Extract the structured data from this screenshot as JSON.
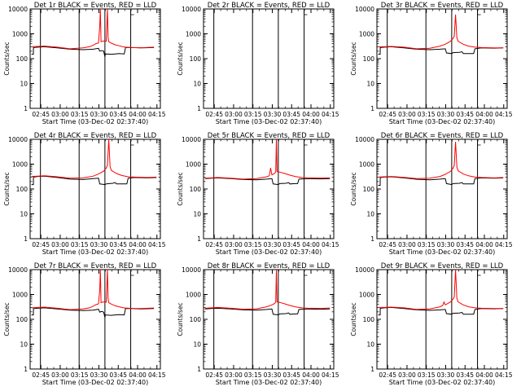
{
  "figure": {
    "x_tick_labels": [
      "02:45",
      "03:00",
      "03:15",
      "03:30",
      "03:45",
      "04:00",
      "04:15"
    ],
    "y_tick_labels": [
      "1",
      "10",
      "100",
      "1000",
      "10000"
    ],
    "ylabel": "Counts/sec",
    "xlabel": "Start Time (03-Dec-02 02:37:40)",
    "colors": {
      "events": "#000000",
      "lld": "#ff0000",
      "frame": "#000000",
      "background": "#ffffff"
    }
  },
  "chart_data": [
    {
      "type": "line",
      "title": "Det 1r BLACK = Events, RED = LLD",
      "xlabel": "Start Time (03-Dec-02 02:37:40)",
      "ylabel": "Counts/sec",
      "yscale": "log",
      "ylim": [
        1,
        10000
      ],
      "xlim_minutes": [
        -1,
        100
      ],
      "vlines_minutes": [
        7,
        37,
        57,
        77
      ],
      "series": [
        {
          "name": "Events",
          "color": "#000000",
          "x": [
            0,
            1.5,
            1.6,
            5,
            10,
            20,
            30,
            40,
            48,
            52,
            53,
            54,
            55,
            56,
            57,
            57.3,
            62,
            65,
            68,
            72,
            73,
            78,
            85,
            95
          ],
          "y": [
            150,
            150,
            280,
            290,
            300,
            270,
            240,
            230,
            240,
            260,
            200,
            210,
            210,
            200,
            120,
            155,
            150,
            155,
            160,
            155,
            280,
            280,
            270,
            280
          ]
        },
        {
          "name": "LLD",
          "color": "#ff0000",
          "x": [
            0,
            5,
            10,
            20,
            30,
            40,
            45,
            48,
            50,
            52,
            53,
            53.5,
            54,
            55,
            56,
            57,
            58,
            59,
            59.5,
            60,
            61,
            62,
            65,
            68,
            71,
            73,
            78,
            85,
            95
          ],
          "y": [
            300,
            310,
            320,
            290,
            250,
            270,
            300,
            350,
            400,
            430,
            2000,
            20000,
            480,
            500,
            510,
            520,
            500,
            20000,
            700,
            480,
            450,
            420,
            360,
            330,
            300,
            290,
            280,
            275,
            290
          ]
        }
      ]
    },
    {
      "type": "line",
      "title": "Det 2r BLACK = Events, RED = LLD",
      "xlabel": "Start Time (03-Dec-02 02:37:40)",
      "ylabel": "Counts/sec",
      "yscale": "log",
      "ylim": [
        1,
        10000
      ],
      "xlim_minutes": [
        -1,
        100
      ],
      "vlines_minutes": [
        7,
        37,
        57,
        77
      ],
      "series": []
    },
    {
      "type": "line",
      "title": "Det 3r BLACK = Events, RED = LLD",
      "xlabel": "Start Time (03-Dec-02 02:37:40)",
      "ylabel": "Counts/sec",
      "yscale": "log",
      "ylim": [
        1,
        10000
      ],
      "xlim_minutes": [
        -1,
        100
      ],
      "vlines_minutes": [
        7,
        37,
        57,
        77
      ],
      "series": [
        {
          "name": "Events",
          "color": "#000000",
          "x": [
            0,
            1.5,
            1.6,
            5,
            10,
            20,
            30,
            40,
            48,
            52,
            53,
            57,
            58,
            63,
            65,
            66,
            70,
            74,
            75,
            80,
            90,
            97
          ],
          "y": [
            150,
            150,
            280,
            290,
            300,
            270,
            240,
            230,
            240,
            250,
            170,
            160,
            175,
            180,
            190,
            160,
            160,
            160,
            250,
            270,
            265,
            270
          ]
        },
        {
          "name": "LLD",
          "color": "#ff0000",
          "x": [
            0,
            5,
            10,
            20,
            30,
            40,
            48,
            52,
            56,
            58,
            59,
            60,
            61,
            62,
            66,
            70,
            75,
            80,
            90,
            97
          ],
          "y": [
            300,
            300,
            310,
            290,
            250,
            260,
            320,
            380,
            500,
            650,
            800,
            6000,
            700,
            500,
            380,
            320,
            290,
            280,
            270,
            270
          ]
        }
      ]
    },
    {
      "type": "line",
      "title": "Det 4r BLACK = Events, RED = LLD",
      "xlabel": "Start Time (03-Dec-02 02:37:40)",
      "ylabel": "Counts/sec",
      "yscale": "log",
      "ylim": [
        1,
        10000
      ],
      "xlim_minutes": [
        -1,
        100
      ],
      "vlines_minutes": [
        7,
        37,
        57,
        77
      ],
      "series": [
        {
          "name": "Events",
          "color": "#000000",
          "x": [
            0,
            1.5,
            1.6,
            5,
            10,
            20,
            30,
            40,
            48,
            52,
            53,
            57,
            58,
            63,
            65,
            66,
            72,
            74,
            75,
            80,
            90,
            97
          ],
          "y": [
            150,
            150,
            300,
            320,
            330,
            290,
            250,
            240,
            260,
            270,
            160,
            150,
            160,
            170,
            180,
            160,
            160,
            160,
            270,
            290,
            280,
            290
          ]
        },
        {
          "name": "LLD",
          "color": "#ff0000",
          "x": [
            0,
            5,
            10,
            20,
            30,
            40,
            48,
            52,
            56,
            58,
            59,
            60,
            61,
            62,
            66,
            70,
            75,
            80,
            90,
            97
          ],
          "y": [
            320,
            330,
            340,
            310,
            270,
            280,
            330,
            400,
            520,
            700,
            900,
            12000,
            800,
            560,
            420,
            350,
            310,
            300,
            290,
            300
          ]
        }
      ]
    },
    {
      "type": "line",
      "title": "Det 5r BLACK = Events, RED = LLD",
      "xlabel": "Start Time (03-Dec-02 02:37:40)",
      "ylabel": "Counts/sec",
      "yscale": "log",
      "ylim": [
        1,
        10000
      ],
      "xlim_minutes": [
        -1,
        100
      ],
      "vlines_minutes": [
        7,
        37,
        57,
        77
      ],
      "series": [
        {
          "name": "Events",
          "color": "#000000",
          "x": [
            0,
            5,
            10,
            20,
            30,
            40,
            48,
            52,
            53,
            57,
            58,
            63,
            65,
            66,
            70,
            72,
            73,
            80,
            90,
            97
          ],
          "y": [
            260,
            270,
            280,
            260,
            240,
            235,
            250,
            260,
            160,
            150,
            165,
            170,
            180,
            160,
            165,
            165,
            250,
            260,
            255,
            260
          ]
        },
        {
          "name": "LLD",
          "color": "#ff0000",
          "x": [
            0,
            5,
            10,
            20,
            30,
            40,
            48,
            50,
            51,
            52,
            54,
            55,
            55.5,
            56,
            58,
            62,
            66,
            70,
            75,
            80,
            90,
            97
          ],
          "y": [
            270,
            280,
            290,
            270,
            250,
            260,
            310,
            340,
            700,
            370,
            420,
            480,
            12000,
            500,
            480,
            420,
            360,
            320,
            290,
            280,
            275,
            280
          ]
        }
      ]
    },
    {
      "type": "line",
      "title": "Det 6r BLACK = Events, RED = LLD",
      "xlabel": "Start Time (03-Dec-02 02:37:40)",
      "ylabel": "Counts/sec",
      "yscale": "log",
      "ylim": [
        1,
        10000
      ],
      "xlim_minutes": [
        -1,
        100
      ],
      "vlines_minutes": [
        7,
        37,
        57,
        77
      ],
      "series": [
        {
          "name": "Events",
          "color": "#000000",
          "x": [
            0,
            1.5,
            1.6,
            5,
            10,
            20,
            30,
            40,
            48,
            52,
            53,
            57,
            58,
            63,
            65,
            66,
            72,
            74,
            75,
            80,
            90,
            97
          ],
          "y": [
            140,
            140,
            290,
            300,
            310,
            280,
            245,
            235,
            250,
            260,
            165,
            150,
            165,
            170,
            180,
            160,
            160,
            160,
            260,
            280,
            270,
            280
          ]
        },
        {
          "name": "LLD",
          "color": "#ff0000",
          "x": [
            0,
            5,
            10,
            20,
            30,
            40,
            48,
            52,
            56,
            58,
            59,
            60,
            61,
            62,
            66,
            70,
            75,
            80,
            90,
            97
          ],
          "y": [
            300,
            310,
            320,
            295,
            260,
            270,
            320,
            390,
            510,
            680,
            880,
            8000,
            780,
            540,
            400,
            340,
            300,
            290,
            280,
            290
          ]
        }
      ]
    },
    {
      "type": "line",
      "title": "Det 7r BLACK = Events, RED = LLD",
      "xlabel": "Start Time (03-Dec-02 02:37:40)",
      "ylabel": "Counts/sec",
      "yscale": "log",
      "ylim": [
        1,
        10000
      ],
      "xlim_minutes": [
        -1,
        100
      ],
      "vlines_minutes": [
        7,
        37,
        57,
        77
      ],
      "series": [
        {
          "name": "Events",
          "color": "#000000",
          "x": [
            0,
            1.5,
            1.6,
            5,
            10,
            20,
            30,
            40,
            48,
            52,
            53,
            54,
            55,
            56,
            57,
            57.3,
            62,
            65,
            68,
            72,
            73,
            78,
            85,
            95
          ],
          "y": [
            150,
            150,
            270,
            280,
            290,
            260,
            235,
            225,
            235,
            255,
            195,
            205,
            205,
            195,
            120,
            150,
            145,
            150,
            155,
            150,
            270,
            270,
            260,
            270
          ]
        },
        {
          "name": "LLD",
          "color": "#ff0000",
          "x": [
            0,
            5,
            10,
            20,
            30,
            40,
            45,
            48,
            50,
            52,
            53,
            53.5,
            54,
            55,
            56,
            57,
            58,
            59,
            59.5,
            60,
            61,
            62,
            65,
            68,
            71,
            73,
            78,
            85,
            95
          ],
          "y": [
            290,
            300,
            310,
            280,
            245,
            260,
            290,
            340,
            390,
            420,
            1500,
            12000,
            470,
            490,
            500,
            510,
            490,
            14000,
            680,
            470,
            440,
            410,
            350,
            320,
            295,
            285,
            275,
            270,
            285
          ]
        }
      ]
    },
    {
      "type": "line",
      "title": "Det 8r BLACK = Events, RED = LLD",
      "xlabel": "Start Time (03-Dec-02 02:37:40)",
      "ylabel": "Counts/sec",
      "yscale": "log",
      "ylim": [
        1,
        10000
      ],
      "xlim_minutes": [
        -1,
        100
      ],
      "vlines_minutes": [
        7,
        37,
        57,
        77
      ],
      "series": [
        {
          "name": "Events",
          "color": "#000000",
          "x": [
            0,
            5,
            10,
            20,
            30,
            40,
            48,
            52,
            53,
            57,
            58,
            63,
            65,
            66,
            70,
            72,
            73,
            80,
            90,
            97
          ],
          "y": [
            260,
            270,
            280,
            260,
            240,
            235,
            250,
            260,
            160,
            150,
            165,
            170,
            180,
            160,
            165,
            165,
            250,
            260,
            255,
            260
          ]
        },
        {
          "name": "LLD",
          "color": "#ff0000",
          "x": [
            0,
            5,
            10,
            20,
            30,
            40,
            48,
            52,
            54,
            55,
            55.5,
            56,
            58,
            62,
            66,
            70,
            75,
            80,
            90,
            97
          ],
          "y": [
            280,
            290,
            300,
            280,
            255,
            265,
            320,
            380,
            430,
            490,
            10000,
            500,
            480,
            420,
            360,
            320,
            290,
            280,
            275,
            285
          ]
        }
      ]
    },
    {
      "type": "line",
      "title": "Det 9r BLACK = Events, RED = LLD",
      "xlabel": "Start Time (03-Dec-02 02:37:40)",
      "ylabel": "Counts/sec",
      "yscale": "log",
      "ylim": [
        1,
        10000
      ],
      "xlim_minutes": [
        -1,
        100
      ],
      "vlines_minutes": [
        7,
        37,
        57,
        77
      ],
      "series": [
        {
          "name": "Events",
          "color": "#000000",
          "x": [
            0,
            1.5,
            1.6,
            5,
            10,
            20,
            30,
            40,
            48,
            52,
            53,
            57,
            58,
            63,
            65,
            66,
            72,
            74,
            75,
            80,
            90,
            97
          ],
          "y": [
            150,
            150,
            280,
            290,
            300,
            270,
            240,
            230,
            240,
            250,
            170,
            160,
            175,
            180,
            190,
            160,
            160,
            160,
            250,
            270,
            265,
            270
          ]
        },
        {
          "name": "LLD",
          "color": "#ff0000",
          "x": [
            0,
            5,
            10,
            20,
            30,
            40,
            48,
            50,
            51,
            52,
            56,
            58,
            59,
            60,
            61,
            62,
            66,
            70,
            75,
            80,
            90,
            97
          ],
          "y": [
            300,
            300,
            310,
            290,
            250,
            260,
            320,
            360,
            500,
            380,
            500,
            650,
            800,
            12000,
            700,
            500,
            380,
            320,
            290,
            280,
            270,
            270
          ]
        }
      ]
    }
  ]
}
